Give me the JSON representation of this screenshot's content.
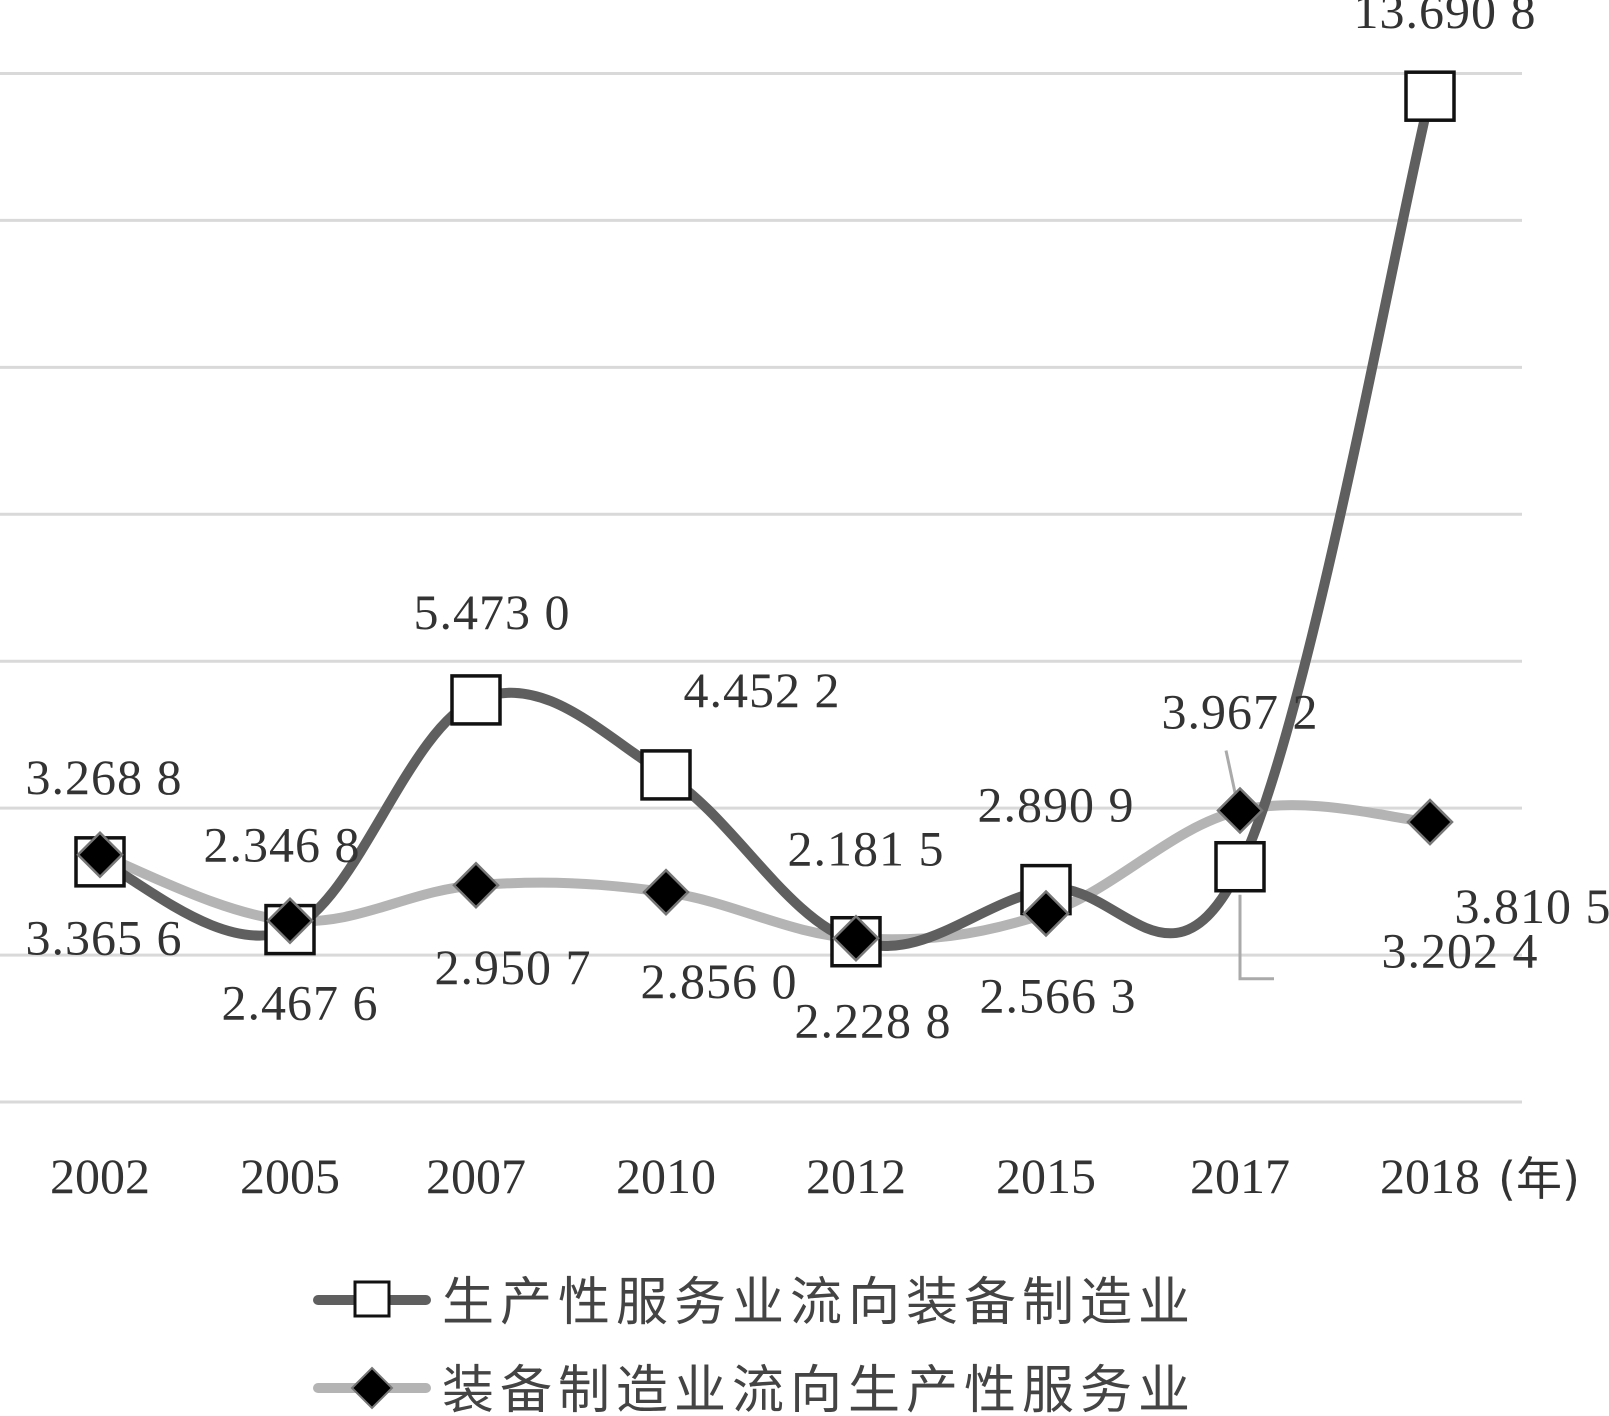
{
  "chart_data": {
    "type": "line",
    "categories": [
      "2002",
      "2005",
      "2007",
      "2010",
      "2012",
      "2015",
      "2017",
      "2018"
    ],
    "x_unit_label": "(年)",
    "ylim": [
      0,
      15
    ],
    "grid": true,
    "series": [
      {
        "name": "生产性服务业流向装备制造业",
        "values": [
          3.2688,
          2.3468,
          5.473,
          4.4522,
          2.1815,
          2.8909,
          3.2024,
          13.6908
        ],
        "labels": [
          "3.268 8",
          "2.346 8",
          "5.473 0",
          "4.452 2",
          "2.181 5",
          "2.890 9",
          "3.202 4",
          "13.690 8"
        ],
        "color": "#5f5f5f",
        "marker": "square"
      },
      {
        "name": "装备制造业流向生产性服务业",
        "values": [
          3.3656,
          2.4676,
          2.9507,
          2.856,
          2.2288,
          2.5663,
          3.9672,
          3.8105
        ],
        "labels": [
          "3.365 6",
          "2.467 6",
          "2.950 7",
          "2.856 0",
          "2.228 8",
          "2.566 3",
          "3.967 2",
          "3.810 5"
        ],
        "color": "#b4b4b4",
        "marker": "diamond"
      }
    ],
    "legend_position": "bottom"
  }
}
